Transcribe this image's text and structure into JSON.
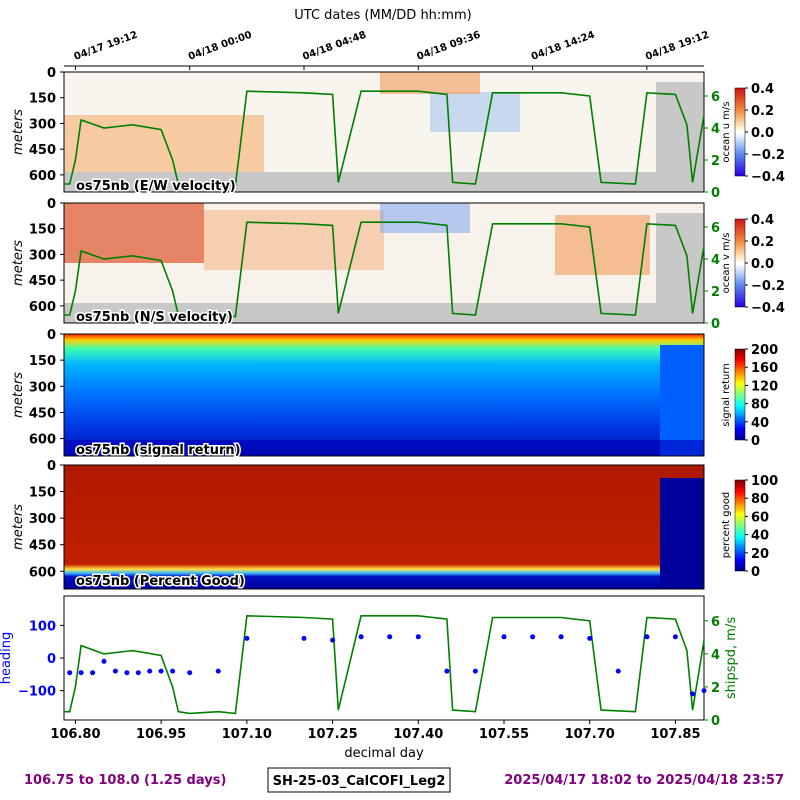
{
  "figure": {
    "top_axis_title": "UTC dates (MM/DD hh:mm)",
    "top_ticks": [
      "04/17 19:12",
      "04/18 00:00",
      "04/18 04:48",
      "04/18 09:36",
      "04/18 14:24",
      "04/18 19:12"
    ],
    "top_tick_days": [
      106.8,
      107.0,
      107.2,
      107.4,
      107.6,
      107.8
    ],
    "footer_left": "106.75 to 108.0 (1.25 days)",
    "footer_center": "SH-25-03_CalCOFI_Leg2",
    "footer_right": "2025/04/17 18:02 to 2025/04/18 23:57",
    "footer_color": "#800080"
  },
  "chart_data": [
    {
      "type": "heatmap",
      "title": "os75nb (E/W velocity)",
      "ylabel": "meters",
      "ylim": [
        700,
        0
      ],
      "yticks": [
        "0",
        "150",
        "300",
        "450",
        "600"
      ],
      "colorbar_label": "ocean u m/s",
      "colorbar_ticks": [
        "0.4",
        "0.2",
        "0.0",
        "−0.2",
        "−0.4"
      ],
      "colormap": "blue-white-red",
      "right_axis_ticks": [
        "6",
        "4",
        "2",
        "0"
      ],
      "right_axis_color": "#008000"
    },
    {
      "type": "heatmap",
      "title": "os75nb (N/S velocity)",
      "ylabel": "meters",
      "ylim": [
        700,
        0
      ],
      "yticks": [
        "0",
        "150",
        "300",
        "450",
        "600"
      ],
      "colorbar_label": "ocean v m/s",
      "colorbar_ticks": [
        "0.4",
        "0.2",
        "0.0",
        "−0.2",
        "−0.4"
      ],
      "colormap": "blue-white-red",
      "right_axis_ticks": [
        "6",
        "4",
        "2",
        "0"
      ],
      "right_axis_color": "#008000"
    },
    {
      "type": "heatmap",
      "title": "os75nb (signal return)",
      "ylabel": "meters",
      "ylim": [
        700,
        0
      ],
      "yticks": [
        "0",
        "150",
        "300",
        "450",
        "600"
      ],
      "colorbar_label": "signal return",
      "colorbar_ticks": [
        "200",
        "160",
        "120",
        "80",
        "40",
        "0"
      ],
      "colormap": "jet"
    },
    {
      "type": "heatmap",
      "title": "os75nb (Percent Good)",
      "ylabel": "meters",
      "ylim": [
        700,
        0
      ],
      "yticks": [
        "0",
        "150",
        "300",
        "450",
        "600"
      ],
      "colorbar_label": "percent good",
      "colorbar_ticks": [
        "100",
        "80",
        "60",
        "40",
        "20",
        "0"
      ],
      "colormap": "jet"
    },
    {
      "type": "line",
      "xlabel": "decimal day",
      "xlim": [
        106.78,
        107.9
      ],
      "xticks": [
        "106.80",
        "106.95",
        "107.10",
        "107.25",
        "107.40",
        "107.55",
        "107.70",
        "107.85"
      ],
      "xtick_values": [
        106.8,
        106.95,
        107.1,
        107.25,
        107.4,
        107.55,
        107.7,
        107.85
      ],
      "ylabel": "heading",
      "ylabel_color": "#0000ff",
      "ylim": [
        -190,
        190
      ],
      "yticks": [
        "100",
        "0",
        "−100"
      ],
      "ytick_values": [
        100,
        0,
        -100
      ],
      "y2label": "shipspd, m/s",
      "y2label_color": "#008000",
      "y2lim": [
        0,
        7.5
      ],
      "y2ticks": [
        "6",
        "4",
        "2",
        "0"
      ],
      "y2tick_values": [
        6,
        4,
        2,
        0
      ],
      "series": [
        {
          "color": "#0000ff",
          "style": "points",
          "x": [
            106.79,
            106.81,
            106.83,
            106.85,
            106.87,
            106.89,
            106.91,
            106.93,
            106.95,
            106.97,
            107.0,
            107.05,
            107.1,
            107.2,
            107.25,
            107.3,
            107.35,
            107.4,
            107.45,
            107.5,
            107.55,
            107.6,
            107.65,
            107.7,
            107.75,
            107.8,
            107.85,
            107.88,
            107.9
          ],
          "y": [
            -45,
            -45,
            -45,
            -10,
            -40,
            -45,
            -45,
            -40,
            -40,
            -40,
            -45,
            -40,
            60,
            60,
            55,
            65,
            65,
            65,
            -40,
            -40,
            65,
            65,
            65,
            60,
            -40,
            65,
            65,
            -110,
            -100
          ]
        },
        {
          "color": "#008000",
          "style": "line",
          "axis": "right",
          "x": [
            106.78,
            106.79,
            106.8,
            106.81,
            106.85,
            106.9,
            106.95,
            106.97,
            106.98,
            107.0,
            107.05,
            107.08,
            107.1,
            107.2,
            107.25,
            107.26,
            107.3,
            107.35,
            107.4,
            107.45,
            107.46,
            107.5,
            107.53,
            107.55,
            107.65,
            107.7,
            107.72,
            107.78,
            107.8,
            107.85,
            107.87,
            107.88,
            107.9
          ],
          "y": [
            0.5,
            0.5,
            2.0,
            4.5,
            4.0,
            4.2,
            3.9,
            2.0,
            0.5,
            0.4,
            0.5,
            0.4,
            6.3,
            6.2,
            6.1,
            0.6,
            6.3,
            6.3,
            6.3,
            6.1,
            0.6,
            0.5,
            6.2,
            6.2,
            6.2,
            6.0,
            0.6,
            0.5,
            6.2,
            6.1,
            4.2,
            0.6,
            4.8
          ]
        }
      ]
    }
  ]
}
